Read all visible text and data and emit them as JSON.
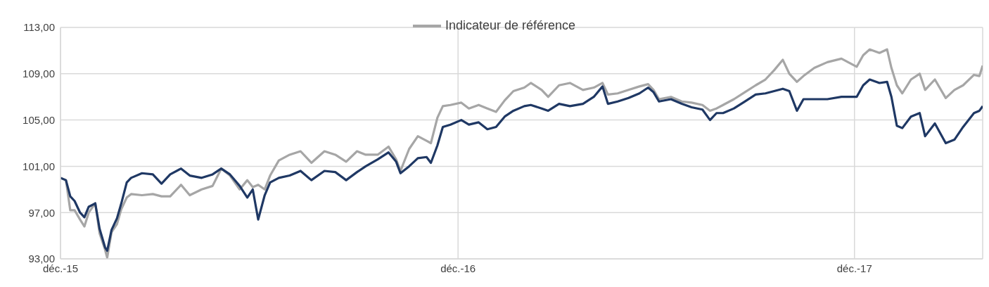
{
  "chart_data": {
    "type": "line",
    "x": [
      "2015-12-31",
      "2016-01-05",
      "2016-01-09",
      "2016-01-13",
      "2016-01-18",
      "2016-01-22",
      "2016-01-26",
      "2016-02-01",
      "2016-02-05",
      "2016-02-10",
      "2016-02-12",
      "2016-02-16",
      "2016-02-21",
      "2016-02-25",
      "2016-03-01",
      "2016-03-05",
      "2016-03-15",
      "2016-03-25",
      "2016-04-02",
      "2016-04-10",
      "2016-04-20",
      "2016-04-28",
      "2016-05-09",
      "2016-05-19",
      "2016-05-27",
      "2016-06-04",
      "2016-06-13",
      "2016-06-20",
      "2016-06-25",
      "2016-06-30",
      "2016-07-06",
      "2016-07-11",
      "2016-07-19",
      "2016-07-29",
      "2016-08-08",
      "2016-08-18",
      "2016-08-30",
      "2016-09-09",
      "2016-09-19",
      "2016-09-29",
      "2016-10-07",
      "2016-10-18",
      "2016-10-28",
      "2016-11-04",
      "2016-11-08",
      "2016-11-16",
      "2016-11-24",
      "2016-12-02",
      "2016-12-06",
      "2016-12-12",
      "2016-12-17",
      "2016-12-24",
      "2017-01-03",
      "2017-01-10",
      "2017-01-19",
      "2017-01-27",
      "2017-02-04",
      "2017-02-12",
      "2017-02-20",
      "2017-03-02",
      "2017-03-08",
      "2017-03-18",
      "2017-03-24",
      "2017-04-03",
      "2017-04-13",
      "2017-04-25",
      "2017-05-05",
      "2017-05-13",
      "2017-05-18",
      "2017-05-27",
      "2017-06-06",
      "2017-06-16",
      "2017-06-24",
      "2017-06-29",
      "2017-07-04",
      "2017-07-15",
      "2017-07-25",
      "2017-08-03",
      "2017-08-13",
      "2017-08-20",
      "2017-08-26",
      "2017-09-01",
      "2017-09-11",
      "2017-09-21",
      "2017-10-01",
      "2017-10-10",
      "2017-10-18",
      "2017-10-26",
      "2017-11-01",
      "2017-11-08",
      "2017-11-14",
      "2017-11-24",
      "2017-12-06",
      "2017-12-19",
      "2018-01-02",
      "2018-01-08",
      "2018-01-14",
      "2018-01-23",
      "2018-01-30",
      "2018-02-03",
      "2018-02-08",
      "2018-02-13",
      "2018-02-21",
      "2018-03-01",
      "2018-03-06",
      "2018-03-15",
      "2018-03-25",
      "2018-04-02",
      "2018-04-10",
      "2018-04-20",
      "2018-04-25",
      "2018-04-28"
    ],
    "series": [
      {
        "color": "#1f3864",
        "values": [
          100,
          99.8,
          98.4,
          98.0,
          97.0,
          96.6,
          97.5,
          97.8,
          95.6,
          94.0,
          93.7,
          95.5,
          96.5,
          97.8,
          99.6,
          100.0,
          100.4,
          100.3,
          99.5,
          100.3,
          100.8,
          100.2,
          100.0,
          100.3,
          100.8,
          100.3,
          99.3,
          98.3,
          99.0,
          96.4,
          98.5,
          99.6,
          100.0,
          100.2,
          100.6,
          99.8,
          100.6,
          100.5,
          99.8,
          100.5,
          101.0,
          101.6,
          102.2,
          101.4,
          100.4,
          101.0,
          101.7,
          101.8,
          101.3,
          102.8,
          104.4,
          104.6,
          105.0,
          104.6,
          104.8,
          104.2,
          104.4,
          105.3,
          105.8,
          106.2,
          106.3,
          106.0,
          105.8,
          106.4,
          106.2,
          106.4,
          107.0,
          107.9,
          106.4,
          106.6,
          106.9,
          107.3,
          107.8,
          107.4,
          106.6,
          106.8,
          106.4,
          106.1,
          105.9,
          105.0,
          105.6,
          105.6,
          106.0,
          106.6,
          107.2,
          107.3,
          107.5,
          107.7,
          107.5,
          105.8,
          106.8,
          106.8,
          106.8,
          107.0,
          107.0,
          108.0,
          108.5,
          108.2,
          108.3,
          107.0,
          104.5,
          104.3,
          105.3,
          105.6,
          103.6,
          104.7,
          103.0,
          103.3,
          104.4,
          105.6,
          105.8,
          106.2
        ]
      },
      {
        "name": "Indicateur de référence",
        "color": "#a6a6a6",
        "values": [
          100,
          99.8,
          97.2,
          97.2,
          96.4,
          95.8,
          97.0,
          97.8,
          95.2,
          93.8,
          93.1,
          95.3,
          96.0,
          97.3,
          98.3,
          98.6,
          98.5,
          98.6,
          98.4,
          98.4,
          99.4,
          98.5,
          99.0,
          99.3,
          100.8,
          100.2,
          99.0,
          99.8,
          99.2,
          99.4,
          99.0,
          100.2,
          101.5,
          102.0,
          102.3,
          101.3,
          102.3,
          102.0,
          101.4,
          102.3,
          102.0,
          102.0,
          102.7,
          101.6,
          100.6,
          102.5,
          103.6,
          103.2,
          103.0,
          105.2,
          106.2,
          106.3,
          106.5,
          106.0,
          106.3,
          106.0,
          105.7,
          106.7,
          107.5,
          107.8,
          108.2,
          107.6,
          107.0,
          108.0,
          108.2,
          107.6,
          107.8,
          108.2,
          107.2,
          107.3,
          107.6,
          107.9,
          108.1,
          107.6,
          106.8,
          107.0,
          106.6,
          106.5,
          106.3,
          105.8,
          106.0,
          106.3,
          106.8,
          107.4,
          108.0,
          108.5,
          109.3,
          110.2,
          109.0,
          108.3,
          108.8,
          109.5,
          110.0,
          110.3,
          109.6,
          110.6,
          111.1,
          110.8,
          111.1,
          109.5,
          108.0,
          107.3,
          108.5,
          109.0,
          107.6,
          108.5,
          106.9,
          107.6,
          108.0,
          108.9,
          108.8,
          109.7
        ]
      }
    ],
    "xlim": [
      "2015-12-31",
      "2018-04-28"
    ],
    "xticks": [
      {
        "value": "2015-12-31",
        "label": "déc.-15"
      },
      {
        "value": "2016-12-31",
        "label": "déc.-16"
      },
      {
        "value": "2017-12-31",
        "label": "déc.-17"
      }
    ],
    "ylim": [
      93,
      113
    ],
    "yticks": [
      {
        "value": 93,
        "label": "93,00"
      },
      {
        "value": 97,
        "label": "97,00"
      },
      {
        "value": 101,
        "label": "101,00"
      },
      {
        "value": 105,
        "label": "105,00"
      },
      {
        "value": 109,
        "label": "109,00"
      },
      {
        "value": 113,
        "label": "113,00"
      }
    ],
    "grid": true,
    "legend": "top"
  }
}
